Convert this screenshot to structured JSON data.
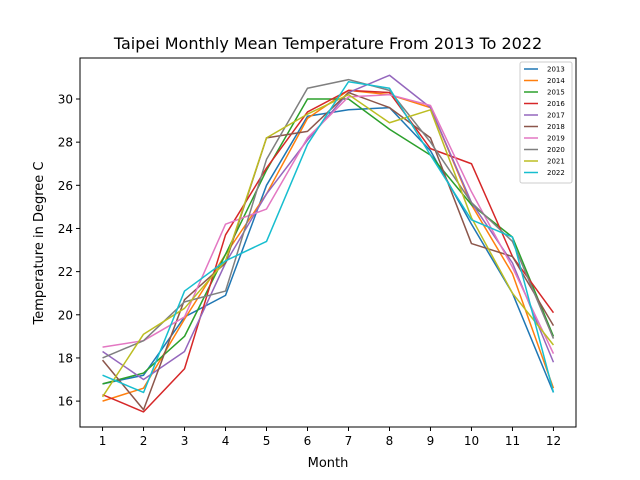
{
  "chart_data": {
    "type": "line",
    "title": "Taipei Monthly Mean Temperature From 2013 To 2022",
    "xlabel": "Month",
    "ylabel": "Temperature in Degree C",
    "x": [
      1,
      2,
      3,
      4,
      5,
      6,
      7,
      8,
      9,
      10,
      11,
      12
    ],
    "xlim": [
      0.45,
      12.55
    ],
    "ylim": [
      14.8,
      31.9
    ],
    "yticks": [
      16,
      18,
      20,
      22,
      24,
      26,
      28,
      30
    ],
    "grid": false,
    "legend_position": "top-right",
    "series": [
      {
        "name": "2013",
        "color": "#1f77b4",
        "values": [
          16.8,
          17.2,
          19.9,
          20.9,
          26.0,
          29.2,
          29.5,
          29.6,
          27.6,
          24.2,
          21.0,
          16.4
        ]
      },
      {
        "name": "2014",
        "color": "#ff7f0e",
        "values": [
          16.0,
          16.6,
          19.8,
          22.8,
          25.6,
          29.1,
          30.4,
          30.2,
          29.6,
          25.1,
          21.9,
          16.6
        ]
      },
      {
        "name": "2015",
        "color": "#2ca02c",
        "values": [
          16.8,
          17.3,
          19.0,
          22.8,
          26.7,
          30.0,
          30.0,
          28.6,
          27.4,
          25.1,
          23.6,
          19.0
        ]
      },
      {
        "name": "2016",
        "color": "#d62728",
        "values": [
          16.3,
          15.5,
          17.5,
          23.7,
          26.8,
          29.4,
          30.4,
          30.3,
          27.7,
          27.0,
          22.7,
          20.1
        ]
      },
      {
        "name": "2017",
        "color": "#9467bd",
        "values": [
          18.3,
          17.0,
          18.3,
          22.4,
          25.6,
          28.1,
          30.3,
          31.1,
          29.6,
          25.2,
          22.4,
          17.8
        ]
      },
      {
        "name": "2018",
        "color": "#8c564b",
        "values": [
          17.9,
          15.6,
          20.7,
          22.4,
          28.2,
          28.5,
          30.3,
          29.6,
          28.2,
          23.3,
          22.7,
          19.5
        ]
      },
      {
        "name": "2019",
        "color": "#e377c2",
        "values": [
          18.5,
          18.8,
          19.9,
          24.2,
          24.9,
          28.2,
          30.1,
          30.2,
          29.7,
          25.7,
          22.2,
          18.2
        ]
      },
      {
        "name": "2020",
        "color": "#7f7f7f",
        "values": [
          18.0,
          18.8,
          20.6,
          21.1,
          27.2,
          30.5,
          30.9,
          30.4,
          28.0,
          25.2,
          23.4,
          18.9
        ]
      },
      {
        "name": "2021",
        "color": "#bcbd22",
        "values": [
          16.2,
          19.1,
          20.3,
          22.5,
          28.2,
          29.3,
          30.2,
          28.9,
          29.5,
          24.5,
          21.0,
          18.6
        ]
      },
      {
        "name": "2022",
        "color": "#17becf",
        "values": [
          17.2,
          16.4,
          21.1,
          22.5,
          23.4,
          27.9,
          30.8,
          30.5,
          27.4,
          24.4,
          23.6,
          16.4
        ]
      }
    ]
  }
}
